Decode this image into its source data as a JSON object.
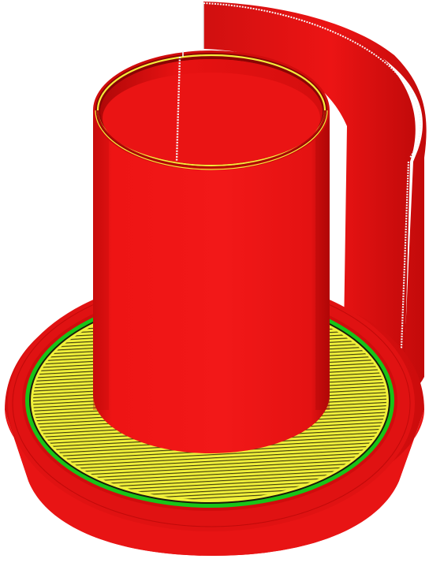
{
  "scene": {
    "type": "gcode-layer-preview",
    "background": "#ffffff",
    "feature_colors": {
      "perimeter": "#ee1414",
      "perimeter_shade": "#b50808",
      "infill": "#f0f03a",
      "infill_line": "#2e2a08",
      "outer_ring": "#16c416",
      "travel_marks": "#ffffff"
    },
    "objects": [
      {
        "name": "tall-cylinder",
        "feature": "perimeter"
      },
      {
        "name": "curved-back-wall",
        "feature": "perimeter"
      },
      {
        "name": "base-flange",
        "feature": "perimeter"
      },
      {
        "name": "top-infill-layer",
        "feature": "infill"
      }
    ]
  }
}
